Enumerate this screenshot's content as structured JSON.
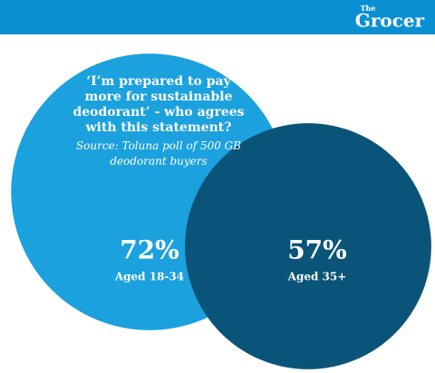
{
  "brand": {
    "small": "The",
    "name": "Grocer"
  },
  "chart_data": {
    "type": "bubble",
    "title": "‘I’m prepared to pay more for sustainable deodorant’ - who agrees with this statement?",
    "subtitle": "Source: Toluna poll of 500 GB deodorant buyers",
    "categories": [
      "Aged 18-34",
      "Aged 35+"
    ],
    "values": [
      72,
      57
    ],
    "value_labels": [
      "72%",
      "57%"
    ],
    "colors": [
      "#1ba1dd",
      "#0a5479"
    ]
  }
}
